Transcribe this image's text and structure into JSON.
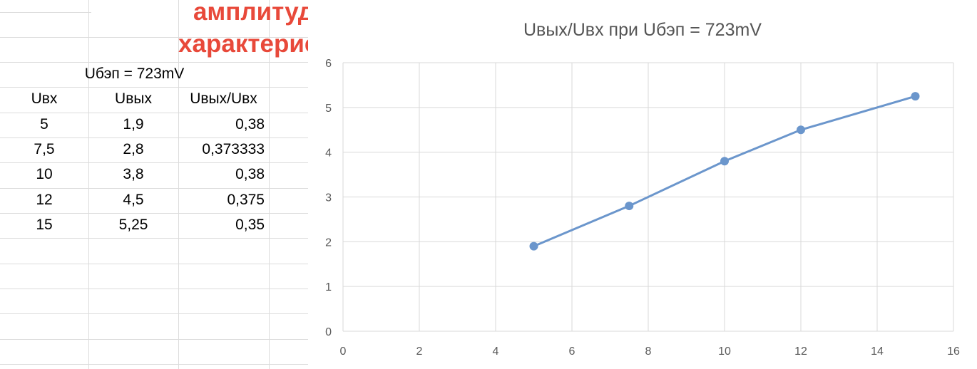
{
  "heading": {
    "line1": "амплитудная",
    "line2": "характеристика"
  },
  "table": {
    "caption": "Uбэп = 723mV",
    "headers": [
      "Uвх",
      "Uвых",
      "Uвых/Uвх"
    ],
    "rows": [
      [
        "5",
        "1,9",
        "0,38"
      ],
      [
        "7,5",
        "2,8",
        "0,373333"
      ],
      [
        "10",
        "3,8",
        "0,38"
      ],
      [
        "12",
        "4,5",
        "0,375"
      ],
      [
        "15",
        "5,25",
        "0,35"
      ]
    ]
  },
  "chart_data": {
    "type": "line",
    "title": "Uвых/Uвх при Uбэп = 723mV",
    "x": [
      5,
      7.5,
      10,
      12,
      15
    ],
    "series": [
      {
        "values": [
          1.9,
          2.8,
          3.8,
          4.5,
          5.25
        ]
      }
    ],
    "xlim": [
      0,
      16
    ],
    "ylim": [
      0,
      6
    ],
    "xticks": [
      "0",
      "2",
      "4",
      "6",
      "8",
      "10",
      "12",
      "14",
      "16"
    ],
    "yticks": [
      "0",
      "1",
      "2",
      "3",
      "4",
      "5",
      "6"
    ],
    "grid": true,
    "color": "#6b96cc",
    "xlabel": "",
    "ylabel": ""
  }
}
